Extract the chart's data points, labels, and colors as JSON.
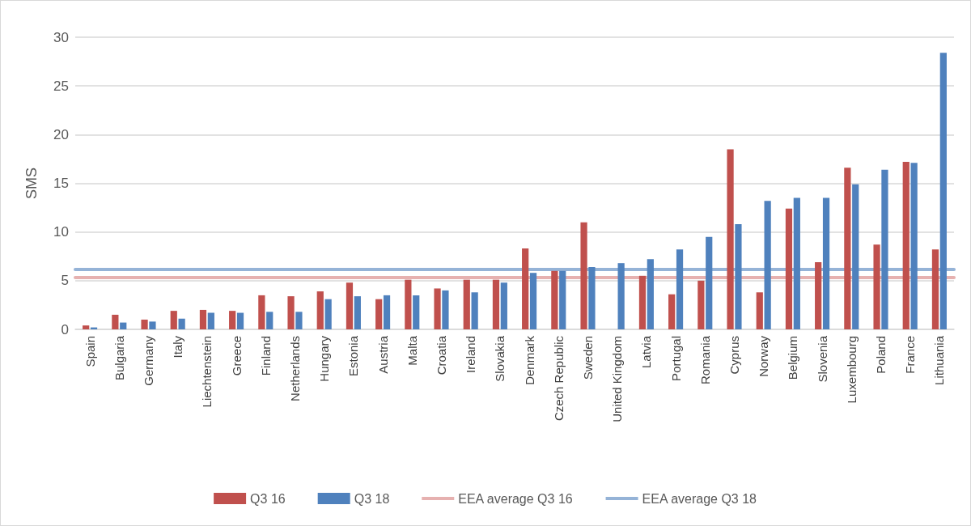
{
  "chart_data": {
    "type": "bar",
    "ylabel": "SMS",
    "categories": [
      "Spain",
      "Bulgaria",
      "Germany",
      "Italy",
      "Liechtenstein",
      "Greece",
      "Finland",
      "Netherlands",
      "Hungary",
      "Estonia",
      "Austria",
      "Malta",
      "Croatia",
      "Ireland",
      "Slovakia",
      "Denmark",
      "Czech Republic",
      "Sweden",
      "United Kingdom",
      "Latvia",
      "Portugal",
      "Romania",
      "Cyprus",
      "Norway",
      "Belgium",
      "Slovenia",
      "Luxembourg",
      "Poland",
      "France",
      "Lithuania"
    ],
    "series": [
      {
        "name": "Q3 16",
        "color": "#c0504d",
        "values": [
          0.4,
          1.5,
          1.0,
          1.9,
          2.0,
          1.9,
          3.5,
          3.4,
          3.9,
          4.8,
          3.1,
          5.1,
          4.2,
          5.1,
          5.1,
          8.3,
          6.0,
          11.0,
          null,
          5.5,
          3.6,
          5.0,
          18.5,
          3.8,
          12.4,
          6.9,
          16.6,
          8.7,
          17.2,
          8.2
        ]
      },
      {
        "name": "Q3 18",
        "color": "#4f81bd",
        "values": [
          0.2,
          0.7,
          0.8,
          1.1,
          1.7,
          1.7,
          1.8,
          1.8,
          3.1,
          3.4,
          3.5,
          3.5,
          4.0,
          3.8,
          4.8,
          5.8,
          6.0,
          6.4,
          6.8,
          7.2,
          8.2,
          9.5,
          10.8,
          13.2,
          13.5,
          13.5,
          14.9,
          16.4,
          17.1,
          28.4
        ]
      }
    ],
    "ref_lines": [
      {
        "axis": "y",
        "value": 5.3,
        "label": "EEA average Q3 16",
        "color": "#e6b1b0"
      },
      {
        "axis": "y",
        "value": 6.2,
        "label": "EEA average Q3 18",
        "color": "#95b3d7"
      }
    ],
    "ylim": [
      0,
      30
    ],
    "yticks": [
      0,
      5,
      10,
      15,
      20,
      25,
      30
    ],
    "grid": "y",
    "legend": "bottom"
  }
}
